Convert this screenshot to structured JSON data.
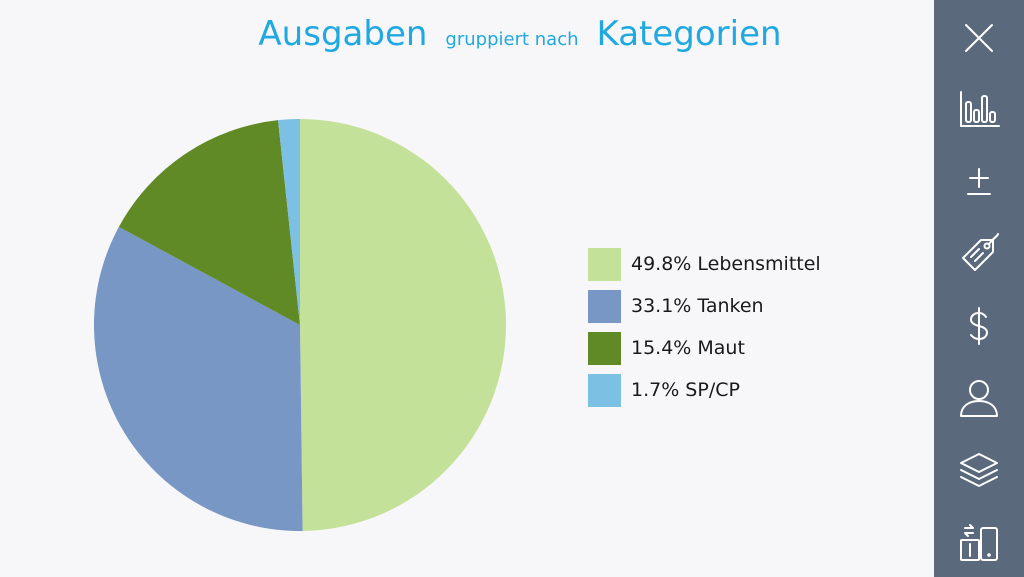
{
  "title": {
    "main_left": "Ausgaben",
    "connector": "gruppiert nach",
    "main_right": "Kategorien"
  },
  "chart_data": {
    "type": "pie",
    "slices": [
      {
        "label": "Lebensmittel",
        "value": 49.8,
        "color": "#c4e19a",
        "legend": "49.8% Lebensmittel"
      },
      {
        "label": "Tanken",
        "value": 33.1,
        "color": "#7897c4",
        "legend": "33.1% Tanken"
      },
      {
        "label": "Maut",
        "value": 15.4,
        "color": "#5f8a26",
        "legend": "15.4% Maut"
      },
      {
        "label": "SP/CP",
        "value": 1.7,
        "color": "#7cc0e3",
        "legend": "1.7% SP/CP"
      }
    ],
    "legend_position": "right"
  },
  "sidebar": {
    "background": "#5a6a7c",
    "items": [
      {
        "icon": "close-icon"
      },
      {
        "icon": "bar-chart-icon"
      },
      {
        "icon": "plus-minus-icon"
      },
      {
        "icon": "tag-icon"
      },
      {
        "icon": "dollar-icon"
      },
      {
        "icon": "user-icon"
      },
      {
        "icon": "layers-icon"
      },
      {
        "icon": "device-switch-icon"
      }
    ]
  }
}
